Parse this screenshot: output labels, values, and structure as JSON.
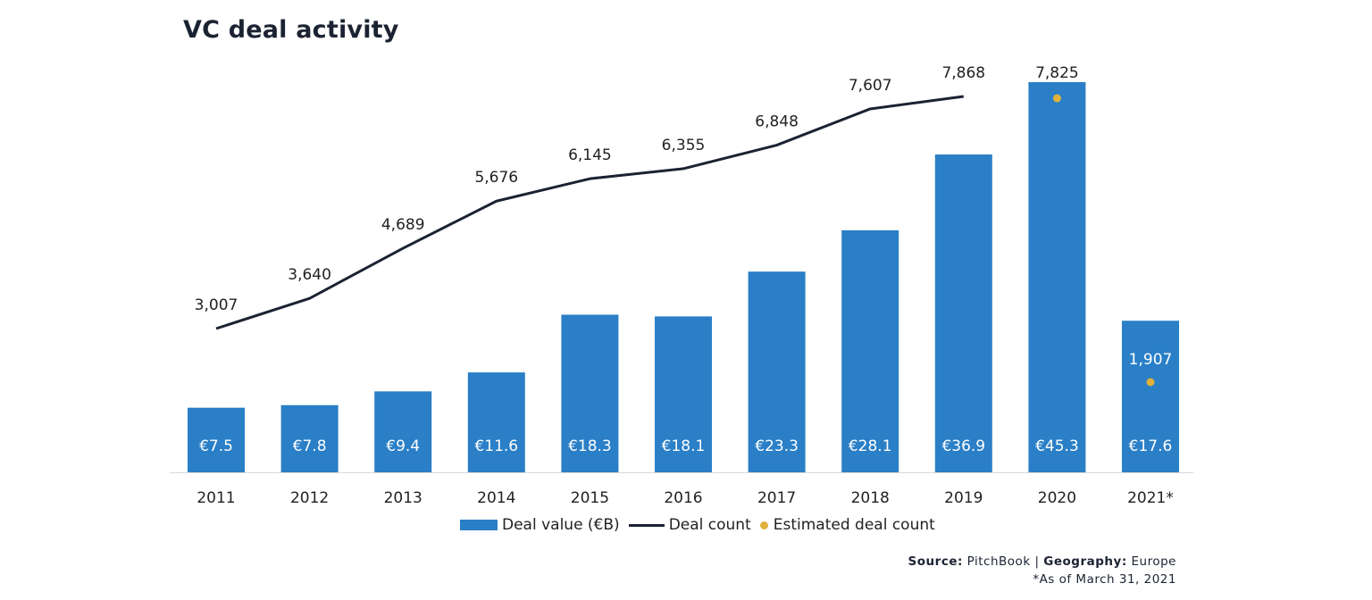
{
  "chart_data": {
    "type": "bar",
    "title": "VC deal activity",
    "categories": [
      "2011",
      "2012",
      "2013",
      "2014",
      "2015",
      "2016",
      "2017",
      "2018",
      "2019",
      "2020",
      "2021*"
    ],
    "series": [
      {
        "name": "Deal value (€B)",
        "kind": "bar",
        "values": [
          7.5,
          7.8,
          9.4,
          11.6,
          18.3,
          18.1,
          23.3,
          28.1,
          36.9,
          45.3,
          17.6
        ],
        "labels": [
          "€7.5",
          "€7.8",
          "€9.4",
          "€11.6",
          "€18.3",
          "€18.1",
          "€23.3",
          "€28.1",
          "€36.9",
          "€45.3",
          "€17.6"
        ],
        "color": "#2a7fc7"
      },
      {
        "name": "Deal count",
        "kind": "line",
        "values": [
          3007,
          3640,
          4689,
          5676,
          6145,
          6355,
          6848,
          7607,
          7868,
          null,
          null
        ],
        "labels": [
          "3,007",
          "3,640",
          "4,689",
          "5,676",
          "6,145",
          "6,355",
          "6,848",
          "7,607",
          "7,868",
          "",
          ""
        ],
        "color": "#1b2332"
      },
      {
        "name": "Estimated deal count",
        "kind": "point",
        "values": [
          null,
          null,
          null,
          null,
          null,
          null,
          null,
          null,
          null,
          7825,
          1907
        ],
        "labels": [
          "",
          "",
          "",
          "",
          "",
          "",
          "",
          "",
          "",
          "7,825",
          "1,907"
        ],
        "color": "#e0b23a"
      }
    ],
    "ylim_value": [
      0,
      45.3
    ],
    "ylim_count": [
      0,
      7868
    ],
    "grid": false,
    "legend_placement": "bottom"
  },
  "legend": {
    "bar_label": "Deal value (€B)",
    "line_label": "Deal count",
    "dot_label": "Estimated deal count"
  },
  "source": {
    "source_key": "Source:",
    "source_val": "PitchBook",
    "separator": "|",
    "geo_key": "Geography:",
    "geo_val": "Europe",
    "note": "*As of March 31, 2021"
  }
}
